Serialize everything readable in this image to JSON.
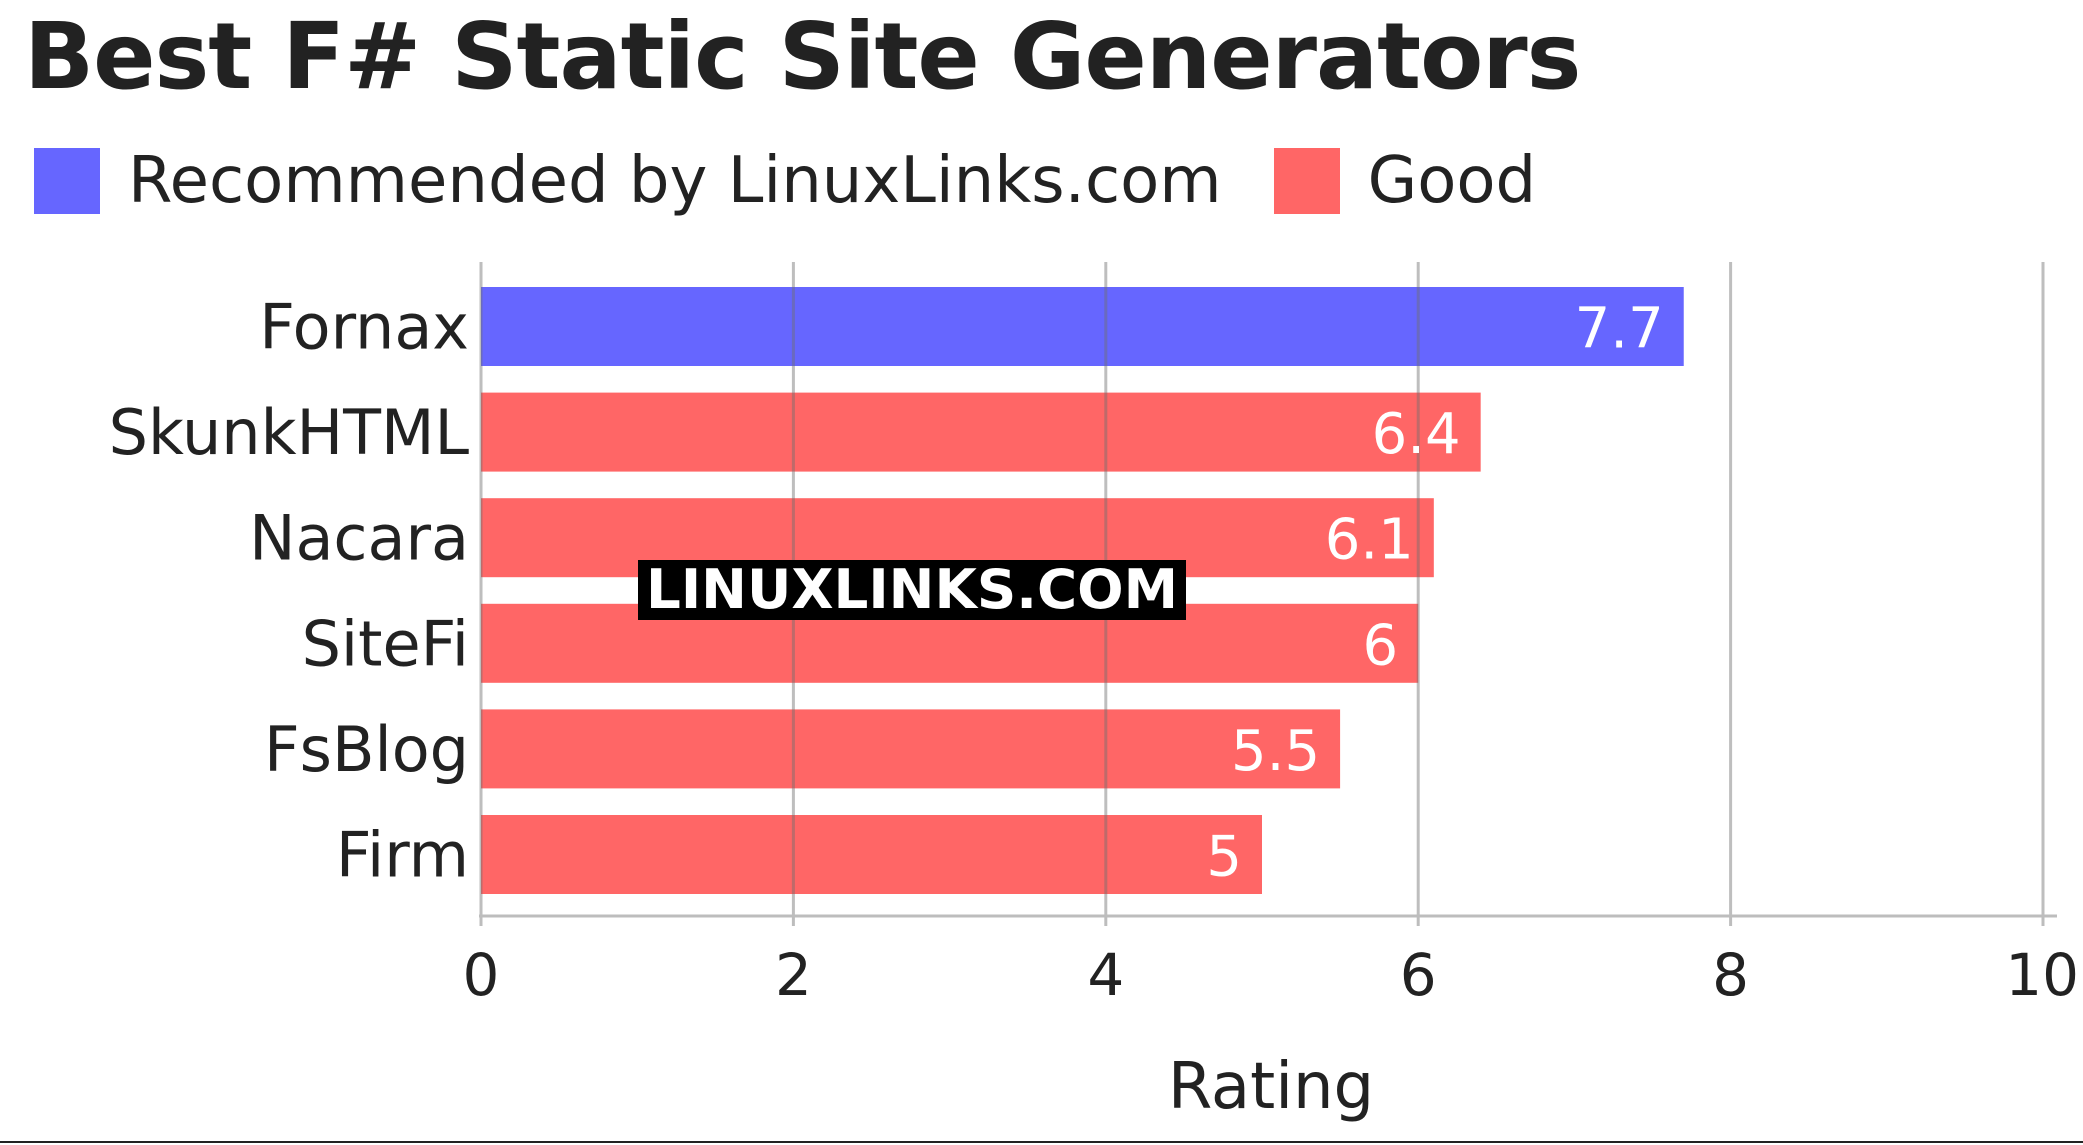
{
  "chart_data": {
    "type": "bar",
    "orientation": "horizontal",
    "title": "Best F# Static Site Generators",
    "xlabel": "Rating",
    "ylabel": "",
    "xlim": [
      0,
      10
    ],
    "xticks": [
      0,
      2,
      4,
      6,
      8,
      10
    ],
    "grid": true,
    "legend_placement": "top-left",
    "categories": [
      "Fornax",
      "SkunkHTML",
      "Nacara",
      "SiteFi",
      "FsBlog",
      "Firm"
    ],
    "values": [
      7.7,
      6.4,
      6.1,
      6,
      5.5,
      5
    ],
    "value_labels": [
      "7.7",
      "6.4",
      "6.1",
      "6",
      "5.5",
      "5"
    ],
    "groups": [
      "Recommended by LinuxLinks.com",
      "Good",
      "Good",
      "Good",
      "Good",
      "Good"
    ],
    "legend": [
      {
        "name": "Recommended by LinuxLinks.com",
        "color": "#6666ff"
      },
      {
        "name": "Good",
        "color": "#ff6666"
      }
    ],
    "watermark": "LINUXLINKS.COM"
  }
}
